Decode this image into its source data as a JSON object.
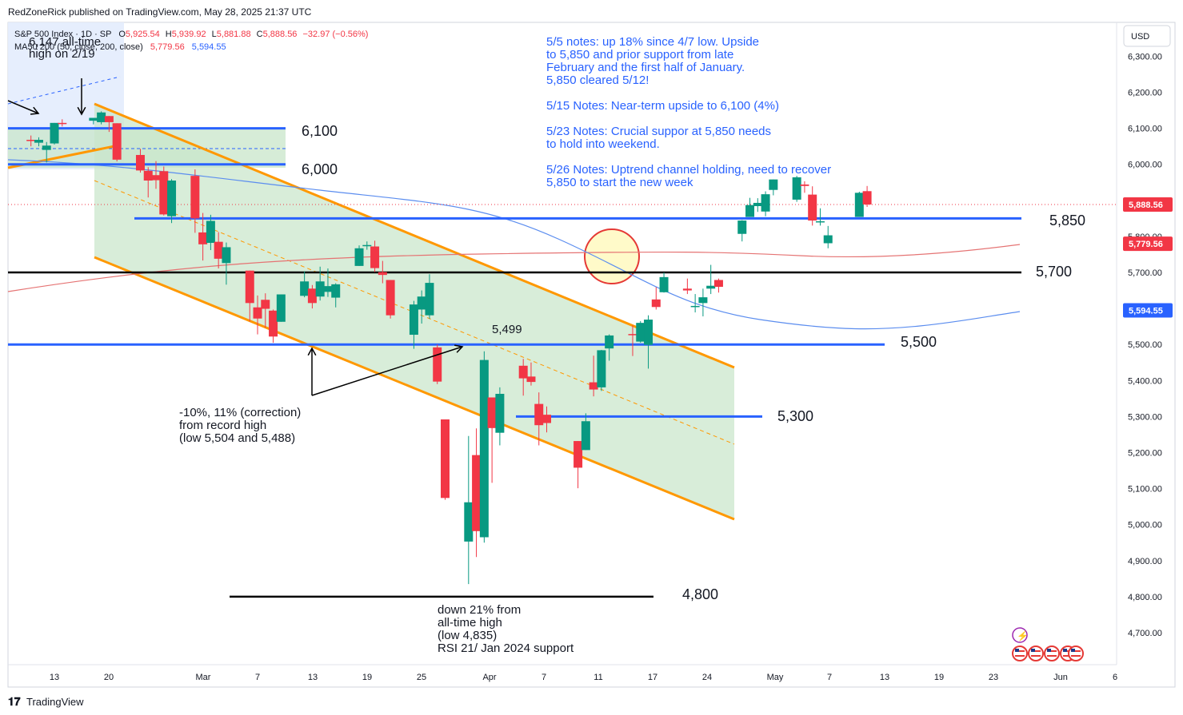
{
  "header": {
    "published_by": "RedZoneRick published on TradingView.com, May 28, 2025 21:37 UTC"
  },
  "legend": {
    "symbol": "S&P 500 Index · 1D · SP",
    "open_label": "O",
    "open": "5,925.54",
    "high_label": "H",
    "high": "5,939.92",
    "low_label": "L",
    "low": "5,881.88",
    "close_label": "C",
    "close": "5,888.56",
    "change": "−32.97 (−0.56%)",
    "ma_label": "MA50 200 (50, close, 200, close)",
    "ma200_value": "5,779.56",
    "ma50_value": "5,594.55"
  },
  "currency": "USD",
  "footer": {
    "brand": "TradingView"
  },
  "colors": {
    "up": "#089981",
    "down": "#f23645",
    "orange": "#ff9800",
    "blue_line": "#2962ff",
    "ma50": "#5b8def",
    "ma200": "#e57373",
    "note_text": "#2962ff",
    "channel_fill": "#c8e6c9"
  },
  "chart_data": {
    "type": "candlestick",
    "title": "S&P 500 Index · 1D · SP",
    "ylim": [
      4620,
      6380
    ],
    "y_ticks": [
      "6,300.00",
      "6,200.00",
      "6,100.00",
      "6,000.00",
      "5,900.00",
      "5,800.00",
      "5,700.00",
      "5,600.00",
      "5,500.00",
      "5,400.00",
      "5,300.00",
      "5,200.00",
      "5,100.00",
      "5,000.00",
      "4,900.00",
      "4,800.00",
      "4,700.00"
    ],
    "x_ticks": [
      "13",
      "20",
      "Mar",
      "7",
      "13",
      "19",
      "25",
      "Apr",
      "7",
      "11",
      "17",
      "24",
      "May",
      "7",
      "13",
      "19",
      "23",
      "Jun",
      "6"
    ],
    "last_price_label": "5,888.56",
    "ma200_label": "5,779.56",
    "ma50_label": "5,594.55",
    "candles": [
      {
        "date": "2025-02-10",
        "o": 6068,
        "h": 6080,
        "l": 6050,
        "c": 6066
      },
      {
        "date": "2025-02-11",
        "o": 6060,
        "h": 6075,
        "l": 6050,
        "c": 6068
      },
      {
        "date": "2025-02-12",
        "o": 6040,
        "h": 6062,
        "l": 6005,
        "c": 6052
      },
      {
        "date": "2025-02-13",
        "o": 6058,
        "h": 6115,
        "l": 6055,
        "c": 6115
      },
      {
        "date": "2025-02-14",
        "o": 6115,
        "h": 6125,
        "l": 6105,
        "c": 6114
      },
      {
        "date": "2025-02-18",
        "o": 6121,
        "h": 6129,
        "l": 6111,
        "c": 6129
      },
      {
        "date": "2025-02-19",
        "o": 6117,
        "h": 6147,
        "l": 6111,
        "c": 6144
      },
      {
        "date": "2025-02-20",
        "o": 6134,
        "h": 6134,
        "l": 6090,
        "c": 6117
      },
      {
        "date": "2025-02-21",
        "o": 6114,
        "h": 6114,
        "l": 6008,
        "c": 6013
      },
      {
        "date": "2025-02-24",
        "o": 6026,
        "h": 6043,
        "l": 5977,
        "c": 5983
      },
      {
        "date": "2025-02-25",
        "o": 5982,
        "h": 5992,
        "l": 5908,
        "c": 5955
      },
      {
        "date": "2025-02-26",
        "o": 5970,
        "h": 6009,
        "l": 5932,
        "c": 5956
      },
      {
        "date": "2025-02-27",
        "o": 5981,
        "h": 5994,
        "l": 5858,
        "c": 5861
      },
      {
        "date": "2025-02-28",
        "o": 5856,
        "h": 5959,
        "l": 5837,
        "c": 5955
      },
      {
        "date": "2025-03-03",
        "o": 5968,
        "h": 5986,
        "l": 5810,
        "c": 5850
      },
      {
        "date": "2025-03-04",
        "o": 5811,
        "h": 5865,
        "l": 5733,
        "c": 5778
      },
      {
        "date": "2025-03-05",
        "o": 5782,
        "h": 5860,
        "l": 5762,
        "c": 5843
      },
      {
        "date": "2025-03-06",
        "o": 5785,
        "h": 5812,
        "l": 5711,
        "c": 5738
      },
      {
        "date": "2025-03-07",
        "o": 5726,
        "h": 5783,
        "l": 5666,
        "c": 5770
      },
      {
        "date": "2025-03-10",
        "o": 5705,
        "h": 5705,
        "l": 5564,
        "c": 5615
      },
      {
        "date": "2025-03-11",
        "o": 5603,
        "h": 5636,
        "l": 5528,
        "c": 5572
      },
      {
        "date": "2025-03-12",
        "o": 5624,
        "h": 5642,
        "l": 5546,
        "c": 5599
      },
      {
        "date": "2025-03-13",
        "o": 5594,
        "h": 5597,
        "l": 5505,
        "c": 5522
      },
      {
        "date": "2025-03-14",
        "o": 5563,
        "h": 5639,
        "l": 5563,
        "c": 5639
      },
      {
        "date": "2025-03-17",
        "o": 5635,
        "h": 5703,
        "l": 5631,
        "c": 5675
      },
      {
        "date": "2025-03-18",
        "o": 5655,
        "h": 5665,
        "l": 5600,
        "c": 5615
      },
      {
        "date": "2025-03-19",
        "o": 5633,
        "h": 5716,
        "l": 5622,
        "c": 5675
      },
      {
        "date": "2025-03-20",
        "o": 5646,
        "h": 5711,
        "l": 5632,
        "c": 5662
      },
      {
        "date": "2025-03-21",
        "o": 5630,
        "h": 5670,
        "l": 5603,
        "c": 5667
      },
      {
        "date": "2025-03-24",
        "o": 5718,
        "h": 5775,
        "l": 5718,
        "c": 5767
      },
      {
        "date": "2025-03-25",
        "o": 5775,
        "h": 5786,
        "l": 5763,
        "c": 5776
      },
      {
        "date": "2025-03-26",
        "o": 5772,
        "h": 5788,
        "l": 5701,
        "c": 5712
      },
      {
        "date": "2025-03-27",
        "o": 5701,
        "h": 5732,
        "l": 5670,
        "c": 5693
      },
      {
        "date": "2025-03-28",
        "o": 5679,
        "h": 5679,
        "l": 5572,
        "c": 5581
      },
      {
        "date": "2025-03-31",
        "o": 5527,
        "h": 5621,
        "l": 5488,
        "c": 5611
      },
      {
        "date": "2025-04-01",
        "o": 5597,
        "h": 5650,
        "l": 5558,
        "c": 5633
      },
      {
        "date": "2025-04-02",
        "o": 5581,
        "h": 5695,
        "l": 5571,
        "c": 5671
      },
      {
        "date": "2025-04-03",
        "o": 5492,
        "h": 5500,
        "l": 5390,
        "c": 5397
      },
      {
        "date": "2025-04-04",
        "o": 5292,
        "h": 5292,
        "l": 5069,
        "c": 5074
      },
      {
        "date": "2025-04-07",
        "o": 4953,
        "h": 5246,
        "l": 4835,
        "c": 5062
      },
      {
        "date": "2025-04-08",
        "o": 5193,
        "h": 5267,
        "l": 4910,
        "c": 4982
      },
      {
        "date": "2025-04-09",
        "o": 4965,
        "h": 5481,
        "l": 4950,
        "c": 5457
      },
      {
        "date": "2025-04-10",
        "o": 5353,
        "h": 5353,
        "l": 5116,
        "c": 5268
      },
      {
        "date": "2025-04-11",
        "o": 5255,
        "h": 5381,
        "l": 5220,
        "c": 5363
      },
      {
        "date": "2025-04-14",
        "o": 5441,
        "h": 5460,
        "l": 5358,
        "c": 5406
      },
      {
        "date": "2025-04-15",
        "o": 5411,
        "h": 5450,
        "l": 5386,
        "c": 5396
      },
      {
        "date": "2025-04-16",
        "o": 5335,
        "h": 5367,
        "l": 5220,
        "c": 5276
      },
      {
        "date": "2025-04-17",
        "o": 5305,
        "h": 5328,
        "l": 5256,
        "c": 5282
      },
      {
        "date": "2025-04-21",
        "o": 5232,
        "h": 5232,
        "l": 5101,
        "c": 5158
      },
      {
        "date": "2025-04-22",
        "o": 5207,
        "h": 5309,
        "l": 5207,
        "c": 5287
      },
      {
        "date": "2025-04-23",
        "o": 5395,
        "h": 5469,
        "l": 5356,
        "c": 5375
      },
      {
        "date": "2025-04-24",
        "o": 5381,
        "h": 5485,
        "l": 5371,
        "c": 5484
      },
      {
        "date": "2025-04-25",
        "o": 5489,
        "h": 5528,
        "l": 5455,
        "c": 5525
      },
      {
        "date": "2025-04-28",
        "o": 5529,
        "h": 5553,
        "l": 5468,
        "c": 5528
      },
      {
        "date": "2025-04-29",
        "o": 5508,
        "h": 5565,
        "l": 5505,
        "c": 5560
      },
      {
        "date": "2025-04-30",
        "o": 5499,
        "h": 5581,
        "l": 5433,
        "c": 5569
      },
      {
        "date": "2025-05-01",
        "o": 5625,
        "h": 5659,
        "l": 5597,
        "c": 5604
      },
      {
        "date": "2025-05-02",
        "o": 5645,
        "h": 5700,
        "l": 5644,
        "c": 5687
      },
      {
        "date": "2025-05-05",
        "o": 5655,
        "h": 5683,
        "l": 5640,
        "c": 5650
      },
      {
        "date": "2025-05-06",
        "o": 5605,
        "h": 5640,
        "l": 5589,
        "c": 5607
      },
      {
        "date": "2025-05-07",
        "o": 5615,
        "h": 5655,
        "l": 5578,
        "c": 5631
      },
      {
        "date": "2025-05-08",
        "o": 5655,
        "h": 5721,
        "l": 5640,
        "c": 5663
      },
      {
        "date": "2025-05-09",
        "o": 5679,
        "h": 5683,
        "l": 5644,
        "c": 5660
      },
      {
        "date": "2025-05-12",
        "o": 5807,
        "h": 5845,
        "l": 5786,
        "c": 5844
      },
      {
        "date": "2025-05-13",
        "o": 5854,
        "h": 5907,
        "l": 5854,
        "c": 5887
      },
      {
        "date": "2025-05-14",
        "o": 5884,
        "h": 5906,
        "l": 5868,
        "c": 5893
      },
      {
        "date": "2025-05-15",
        "o": 5869,
        "h": 5925,
        "l": 5856,
        "c": 5917
      },
      {
        "date": "2025-05-16",
        "o": 5929,
        "h": 5958,
        "l": 5914,
        "c": 5958
      },
      {
        "date": "2025-05-19",
        "o": 5902,
        "h": 5968,
        "l": 5896,
        "c": 5964
      },
      {
        "date": "2025-05-20",
        "o": 5944,
        "h": 5953,
        "l": 5921,
        "c": 5940
      },
      {
        "date": "2025-05-21",
        "o": 5916,
        "h": 5939,
        "l": 5830,
        "c": 5844
      },
      {
        "date": "2025-05-22",
        "o": 5842,
        "h": 5878,
        "l": 5830,
        "c": 5842
      },
      {
        "date": "2025-05-23",
        "o": 5781,
        "h": 5829,
        "l": 5767,
        "c": 5803
      },
      {
        "date": "2025-05-27",
        "o": 5854,
        "h": 5924,
        "l": 5854,
        "c": 5921
      },
      {
        "date": "2025-05-28",
        "o": 5925.54,
        "h": 5939.92,
        "l": 5881.88,
        "c": 5888.56
      }
    ],
    "horizontal_levels": [
      {
        "price": 6100,
        "label": "6,100"
      },
      {
        "price": 6000,
        "label": "6,000"
      },
      {
        "price": 5850,
        "label": "5,850"
      },
      {
        "price": 5700,
        "label": "5,700"
      },
      {
        "price": 5500,
        "label": "5,500"
      },
      {
        "price": 5300,
        "label": "5,300"
      },
      {
        "price": 4800,
        "label": "4,800"
      }
    ],
    "annotations": {
      "ath": [
        "6,147 all-time",
        "high on 2/19"
      ],
      "correction": [
        "-10%, 11% (correction)",
        "from record high",
        "(low 5,504 and 5,488)"
      ],
      "low_5499": "5,499",
      "down21": [
        "down 21% from",
        "all-time high",
        "(low 4,835)",
        "RSI 21/ Jan 2024 support"
      ],
      "notes": [
        "5/5 notes: up 18% since 4/7 low. Upside",
        "to 5,850 and prior support from late",
        "February and the first half of January.",
        "5,850 cleared 5/12!",
        "",
        "5/15 Notes: Near-term upside to 6,100 (4%)",
        "",
        "5/23 Notes: Crucial suppor at 5,850 needs",
        "to hold into weekend.",
        "",
        "5/26 Notes: Uptrend channel holding, need to recover",
        "5,850 to start the new week"
      ]
    }
  }
}
